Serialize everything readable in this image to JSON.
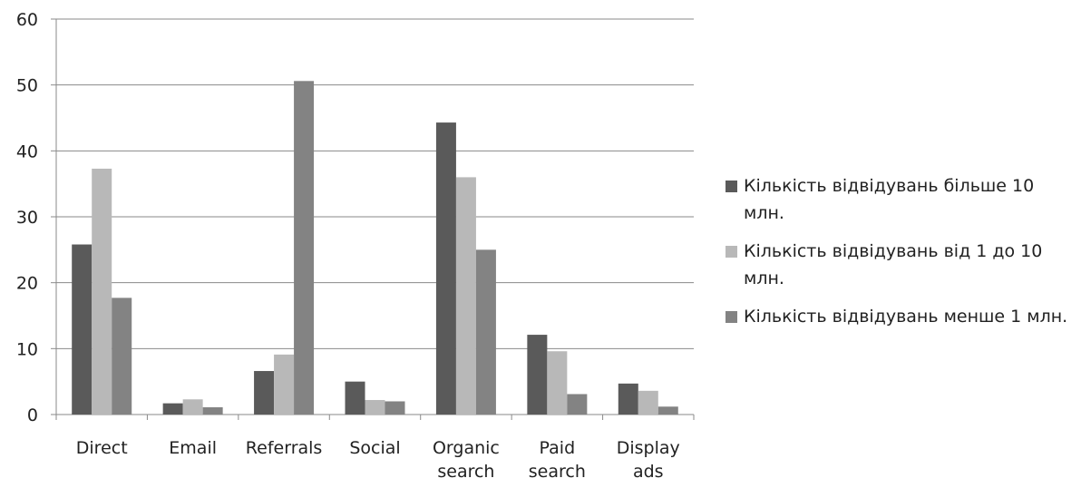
{
  "chart_data": {
    "type": "bar",
    "categories": [
      [
        "Direct"
      ],
      [
        "Email"
      ],
      [
        "Referrals"
      ],
      [
        "Social"
      ],
      [
        "Organic",
        "search"
      ],
      [
        "Paid",
        "search"
      ],
      [
        "Display",
        "ads"
      ]
    ],
    "series": [
      {
        "name": "Кількість відвідувань більше 10 млн.",
        "color": "#5a5a5a",
        "values": [
          25.8,
          1.7,
          6.6,
          5.0,
          44.3,
          12.1,
          4.7
        ]
      },
      {
        "name": "Кількість відвідувань від 1 до 10 млн.",
        "color": "#b8b8b8",
        "values": [
          37.3,
          2.3,
          9.1,
          2.2,
          36.0,
          9.6,
          3.6
        ]
      },
      {
        "name": "Кількість відвідувань менше 1 млн.",
        "color": "#838383",
        "values": [
          17.7,
          1.1,
          50.6,
          2.0,
          25.0,
          3.1,
          1.2
        ]
      }
    ],
    "ylim": [
      0,
      60
    ],
    "yticks": [
      0,
      10,
      20,
      30,
      40,
      50,
      60
    ],
    "grid": true,
    "legend_position": "right",
    "title": "",
    "xlabel": "",
    "ylabel": ""
  }
}
